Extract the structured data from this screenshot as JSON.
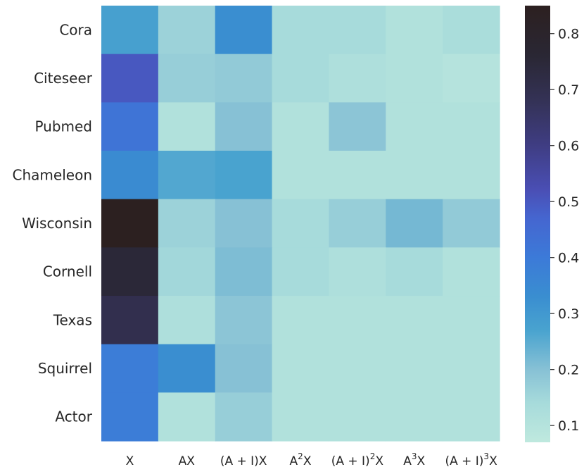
{
  "chart_data": {
    "type": "heatmap",
    "rows": [
      "Cora",
      "Citeseer",
      "Pubmed",
      "Chameleon",
      "Wisconsin",
      "Cornell",
      "Texas",
      "Squirrel",
      "Actor"
    ],
    "columns": [
      {
        "base": "X",
        "sup": ""
      },
      {
        "base": "AX",
        "sup": ""
      },
      {
        "base": "(A + I)X",
        "sup": ""
      },
      {
        "base": "A",
        "sup": "2",
        "tail": "X"
      },
      {
        "base": "(A + I)",
        "sup": "2",
        "tail": "X"
      },
      {
        "base": "A",
        "sup": "3",
        "tail": "X"
      },
      {
        "base": "(A + I)",
        "sup": "3",
        "tail": "X"
      }
    ],
    "values": [
      [
        0.28,
        0.16,
        0.33,
        0.14,
        0.14,
        0.11,
        0.13
      ],
      [
        0.5,
        0.17,
        0.18,
        0.14,
        0.12,
        0.11,
        0.1
      ],
      [
        0.42,
        0.11,
        0.2,
        0.11,
        0.19,
        0.11,
        0.11
      ],
      [
        0.34,
        0.26,
        0.27,
        0.11,
        0.11,
        0.11,
        0.11
      ],
      [
        0.85,
        0.16,
        0.2,
        0.14,
        0.17,
        0.22,
        0.18
      ],
      [
        0.75,
        0.15,
        0.21,
        0.14,
        0.12,
        0.14,
        0.11
      ],
      [
        0.7,
        0.12,
        0.19,
        0.11,
        0.11,
        0.11,
        0.11
      ],
      [
        0.39,
        0.33,
        0.2,
        0.11,
        0.11,
        0.11,
        0.11
      ],
      [
        0.39,
        0.11,
        0.17,
        0.11,
        0.11,
        0.11,
        0.11
      ]
    ],
    "colorbar": {
      "min": 0.07,
      "max": 0.85,
      "ticks": [
        "0.1",
        "0.2",
        "0.3",
        "0.4",
        "0.5",
        "0.6",
        "0.7",
        "0.8"
      ],
      "colorscale": [
        [
          0.07,
          "#bfe9de"
        ],
        [
          0.14,
          "#a7dbdb"
        ],
        [
          0.2,
          "#87c1d5"
        ],
        [
          0.27,
          "#49a3cf"
        ],
        [
          0.33,
          "#3a8ed0"
        ],
        [
          0.4,
          "#3c7ad8"
        ],
        [
          0.47,
          "#4566d0"
        ],
        [
          0.52,
          "#4a4fb5"
        ],
        [
          0.6,
          "#3f3d83"
        ],
        [
          0.68,
          "#343256"
        ],
        [
          0.76,
          "#2a2734"
        ],
        [
          0.85,
          "#2c2020"
        ]
      ]
    }
  }
}
